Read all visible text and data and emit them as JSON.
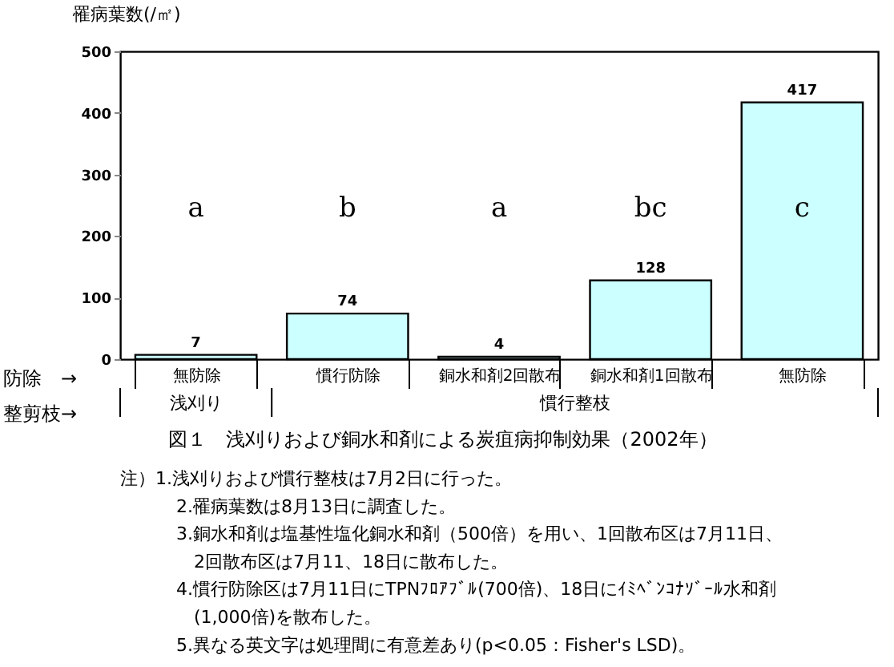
{
  "chart_data": {
    "type": "bar",
    "title": "図１　浅刈りおよび銅水和剤による炭疽病抑制効果（2002年）",
    "ylabel": "罹病葉数(/㎡)",
    "categories": [
      "無防除",
      "慣行防除",
      "銅水和剤2回散布",
      "銅水和剤1回散布",
      "無防除"
    ],
    "values": [
      7,
      74,
      4,
      128,
      417
    ],
    "color": "#ccffff",
    "data_labels": true,
    "ylim": [
      0,
      500
    ],
    "yticks": [
      0,
      100,
      200,
      300,
      400,
      500
    ],
    "grid": false,
    "annotations": [
      "a",
      "b",
      "a",
      "bc",
      "c",
      "防除　→",
      "整剪枝→",
      "浅刈り",
      "慣行整枝",
      "注）1.浅刈りおよび慣行整枝は7月2日に行った。",
      "2.罹病葉数は8月13日に調査した。",
      "3.銅水和剤は塩基性塩化銅水和剤（500倍）を用い、1回散布区は7月11日、",
      "2回散布区は7月11、18日に散布した。",
      "4.慣行防除区は7月11日にTPNﾌﾛｱﾌﾞﾙ(700倍)、18日にｲﾐﾍﾞﾝｺﾅｿﾞｰﾙ水和剤",
      "(1,000倍)を散布した。",
      "5.異なる英文字は処理間に有意差あり(p<0.05：Fisher's LSD)。"
    ]
  }
}
